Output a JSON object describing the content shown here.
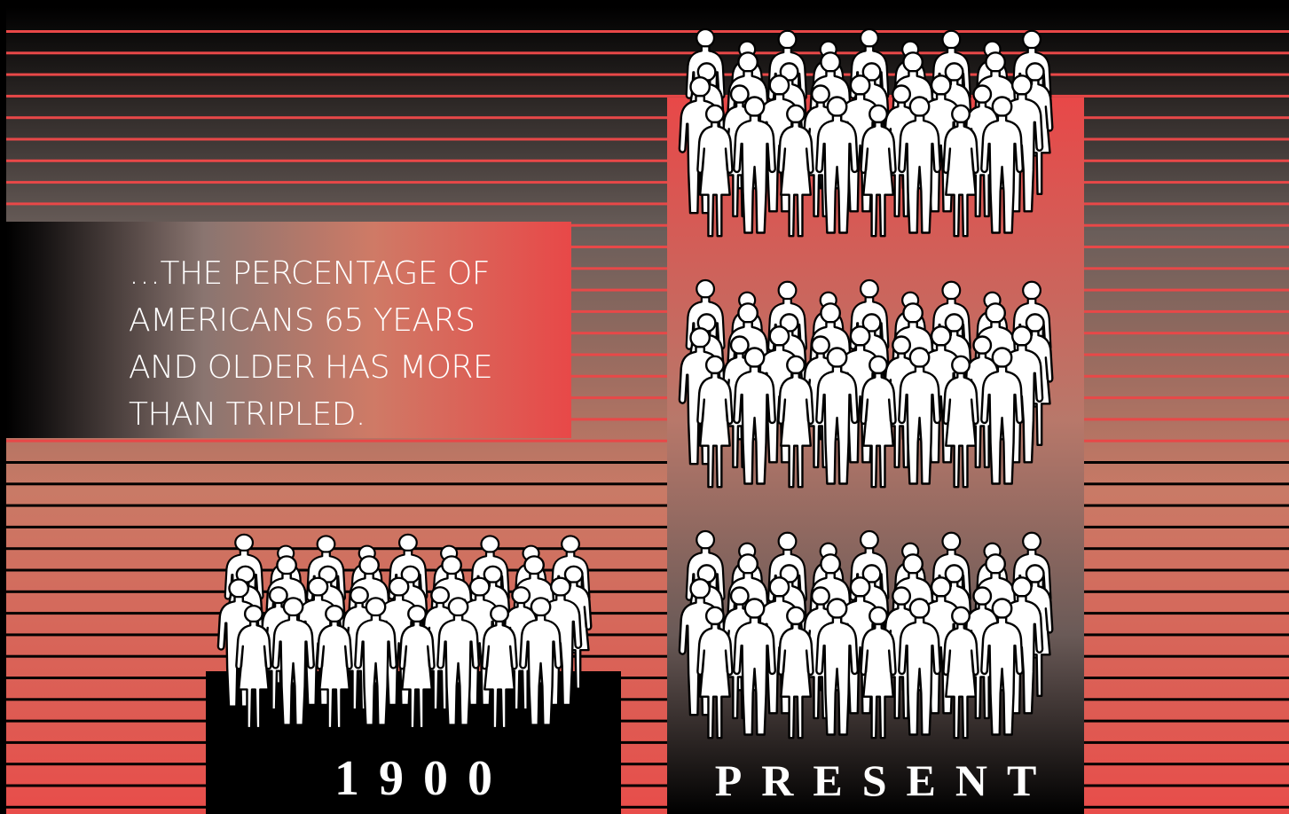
{
  "caption": {
    "lines": [
      "…THE PERCENTAGE OF",
      "AMERICANS 65 YEARS",
      "AND OLDER HAS MORE",
      "THAN TRIPLED."
    ]
  },
  "groups": {
    "past": {
      "label": "1900",
      "crowds": 1
    },
    "present": {
      "label": "PRESENT",
      "crowds": 3
    }
  },
  "colors": {
    "background": "#000000",
    "accent_red": "#e84848",
    "band_grey": "#5a5553",
    "figure_fill": "#ffffff",
    "figure_outline": "#000000"
  },
  "icons": [
    "person-silhouette-icon"
  ]
}
